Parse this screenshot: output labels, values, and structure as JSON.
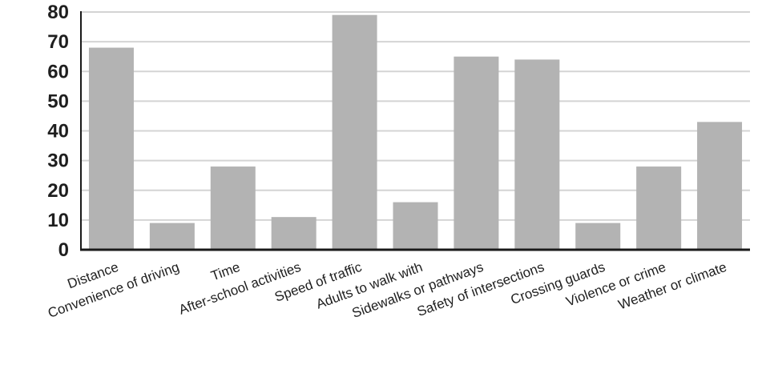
{
  "chart_data": {
    "type": "bar",
    "title": "",
    "xlabel": "",
    "ylabel": "",
    "categories": [
      "Distance",
      "Convenience of driving",
      "Time",
      "After-school activities",
      "Speed of traffic",
      "Adults to walk with",
      "Sidewalks or pathways",
      "Safety of intersections",
      "Crossing guards",
      "Violence or crime",
      "Weather or climate"
    ],
    "values": [
      68,
      9,
      28,
      11,
      79,
      16,
      65,
      64,
      9,
      28,
      43
    ],
    "ylim": [
      0,
      80
    ],
    "yticks": [
      0,
      10,
      20,
      30,
      40,
      50,
      60,
      70,
      80
    ],
    "grid": true,
    "legend": "none",
    "colors": {
      "bar": "#b3b3b3",
      "grid": "#d4d4d4",
      "axis": "#1a1a1a",
      "text": "#1f1f1f"
    }
  }
}
